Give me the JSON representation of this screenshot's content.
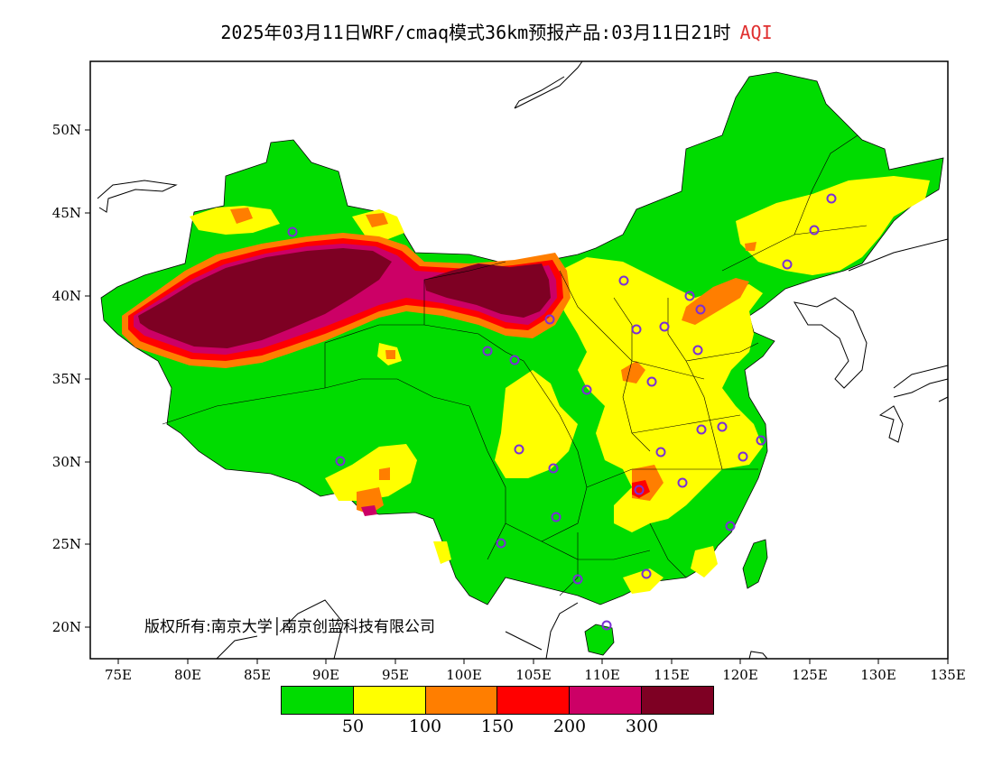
{
  "title": {
    "text": "2025年03月11日WRF/cmaq模式36km预报产品:03月11日21时",
    "tag": "AQI"
  },
  "axes": {
    "x_ticks": [
      "75E",
      "80E",
      "85E",
      "90E",
      "95E",
      "100E",
      "105E",
      "110E",
      "115E",
      "120E",
      "125E",
      "130E",
      "135E"
    ],
    "y_ticks": [
      "50N",
      "45N",
      "40N",
      "35N",
      "30N",
      "25N",
      "20N"
    ],
    "lon_range": [
      73,
      135
    ],
    "lat_range": [
      18,
      54
    ]
  },
  "copyright": "版权所有:南京大学│南京创蓝科技有限公司",
  "legend": {
    "colors": [
      "#00dc00",
      "#ffff00",
      "#ff7e00",
      "#ff0000",
      "#cc0066",
      "#7e0023"
    ],
    "labels": [
      "50",
      "100",
      "150",
      "200",
      "300"
    ]
  },
  "colors": {
    "good": "#00dc00",
    "moderate": "#ffff00",
    "usg": "#ff7e00",
    "unhealthy": "#ff0000",
    "very_unhealthy": "#cc0066",
    "hazardous": "#7e0023",
    "station_marker": "#7a2fd6"
  }
}
